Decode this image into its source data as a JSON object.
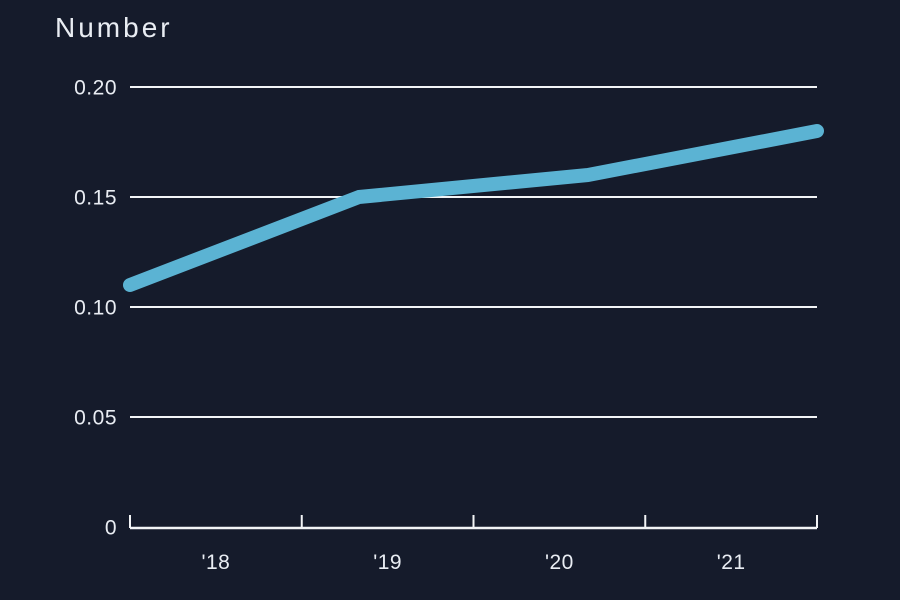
{
  "chart_data": {
    "type": "line",
    "title": "Number",
    "x": [
      "'18",
      "'19",
      "'20",
      "'21"
    ],
    "series": [
      {
        "name": "Number",
        "values": [
          0.11,
          0.15,
          0.16,
          0.18
        ]
      }
    ],
    "ylim": [
      0,
      0.2
    ],
    "yticks": [
      {
        "value": 0,
        "label": "0"
      },
      {
        "value": 0.05,
        "label": "0.05"
      },
      {
        "value": 0.1,
        "label": "0.10"
      },
      {
        "value": 0.15,
        "label": "0.15"
      },
      {
        "value": 0.2,
        "label": "0.20"
      }
    ],
    "grid": true,
    "legend_position": "none",
    "x_axis_style": "baseline-with-upward-ticks, year labels centered between ticks"
  },
  "colors": {
    "background": "#151b2b",
    "line": "#5bb3d3",
    "text": "#e9edf3",
    "grid": "#f2f4f6",
    "axis": "#f2f4f6"
  }
}
